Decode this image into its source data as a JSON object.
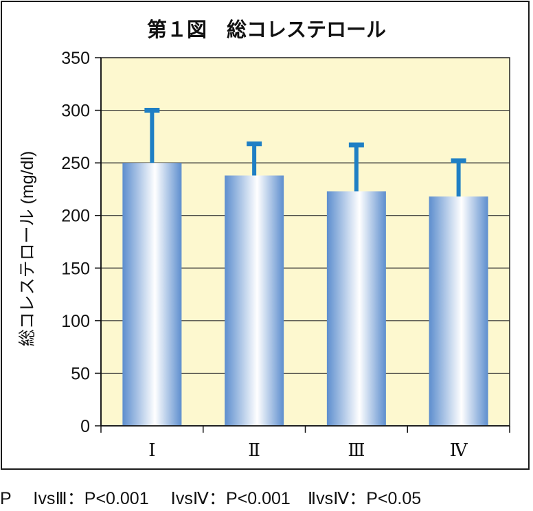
{
  "chart_data": {
    "type": "bar",
    "title": "第１図　総コレステロール",
    "ylabel": "総コレステロール (mg/dl)",
    "xlabel": "",
    "categories": [
      "Ⅰ",
      "Ⅱ",
      "Ⅲ",
      "Ⅳ"
    ],
    "values": [
      250,
      238,
      223,
      218
    ],
    "error_upper": [
      302,
      270,
      269,
      254
    ],
    "ylim": [
      0,
      350
    ],
    "yticks": [
      0,
      50,
      100,
      150,
      200,
      250,
      300,
      350
    ],
    "grid": true,
    "colors": {
      "plot_background": "#fdf8cf",
      "bar_edge": "#5d8ece",
      "bar_center": "#ffffff",
      "error_bar": "#1f7fc4",
      "gridline": "#333333"
    }
  },
  "footnote": "P　 ⅠvsⅢ：P<0.001　 ⅠvsⅣ：P<0.001　ⅡvsⅣ：P<0.05"
}
